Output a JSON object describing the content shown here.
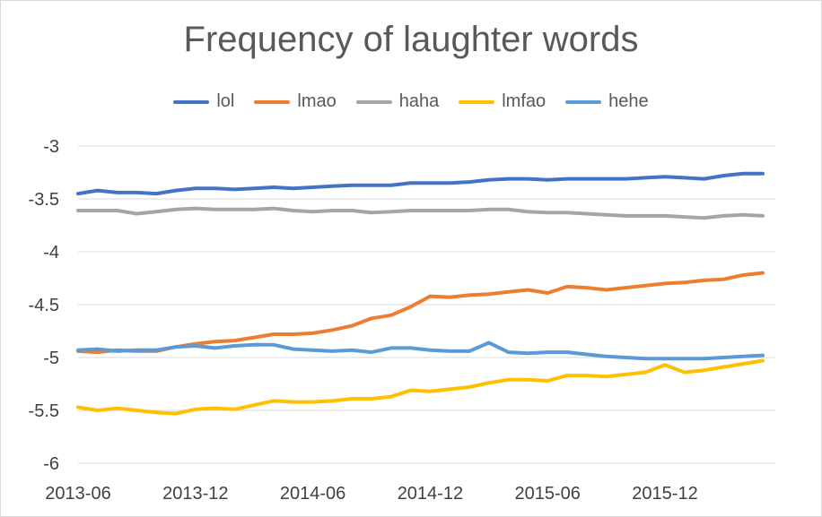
{
  "chart_data": {
    "type": "line",
    "title": "Frequency of laughter words",
    "xlabel": "",
    "ylabel": "",
    "ylim": [
      -6,
      -3
    ],
    "yticks": [
      -3,
      -3.5,
      -4,
      -4.5,
      -5,
      -5.5,
      -6
    ],
    "ytick_labels": [
      "-3",
      "-3.5",
      "-4",
      "-4.5",
      "-5",
      "-5.5",
      "-6"
    ],
    "x_labels": [
      "2013-06",
      "2013-12",
      "2014-06",
      "2014-12",
      "2015-06",
      "2015-12"
    ],
    "x_label_positions": [
      0,
      6,
      12,
      18,
      24,
      30
    ],
    "grid": true,
    "legend_position": "top",
    "series": [
      {
        "name": "lol",
        "color": "#4472C4",
        "values": [
          -3.45,
          -3.42,
          -3.44,
          -3.44,
          -3.45,
          -3.42,
          -3.4,
          -3.4,
          -3.41,
          -3.4,
          -3.39,
          -3.4,
          -3.39,
          -3.38,
          -3.37,
          -3.37,
          -3.37,
          -3.35,
          -3.35,
          -3.35,
          -3.34,
          -3.32,
          -3.31,
          -3.31,
          -3.32,
          -3.31,
          -3.31,
          -3.31,
          -3.31,
          -3.3,
          -3.29,
          -3.3,
          -3.31,
          -3.28,
          -3.26,
          -3.26
        ]
      },
      {
        "name": "lmao",
        "color": "#ED7D31",
        "values": [
          -4.94,
          -4.95,
          -4.93,
          -4.94,
          -4.94,
          -4.9,
          -4.87,
          -4.85,
          -4.84,
          -4.81,
          -4.78,
          -4.78,
          -4.77,
          -4.74,
          -4.7,
          -4.63,
          -4.6,
          -4.52,
          -4.42,
          -4.43,
          -4.41,
          -4.4,
          -4.38,
          -4.36,
          -4.39,
          -4.33,
          -4.34,
          -4.36,
          -4.34,
          -4.32,
          -4.3,
          -4.29,
          -4.27,
          -4.26,
          -4.22,
          -4.2
        ]
      },
      {
        "name": "haha",
        "color": "#A5A5A5",
        "values": [
          -3.61,
          -3.61,
          -3.61,
          -3.64,
          -3.62,
          -3.6,
          -3.59,
          -3.6,
          -3.6,
          -3.6,
          -3.59,
          -3.61,
          -3.62,
          -3.61,
          -3.61,
          -3.63,
          -3.62,
          -3.61,
          -3.61,
          -3.61,
          -3.61,
          -3.6,
          -3.6,
          -3.62,
          -3.63,
          -3.63,
          -3.64,
          -3.65,
          -3.66,
          -3.66,
          -3.66,
          -3.67,
          -3.68,
          -3.66,
          -3.65,
          -3.66
        ]
      },
      {
        "name": "lmfao",
        "color": "#FFC000",
        "values": [
          -5.47,
          -5.5,
          -5.48,
          -5.5,
          -5.52,
          -5.53,
          -5.49,
          -5.48,
          -5.49,
          -5.45,
          -5.41,
          -5.42,
          -5.42,
          -5.41,
          -5.39,
          -5.39,
          -5.37,
          -5.31,
          -5.32,
          -5.3,
          -5.28,
          -5.24,
          -5.21,
          -5.21,
          -5.22,
          -5.17,
          -5.17,
          -5.18,
          -5.16,
          -5.14,
          -5.07,
          -5.14,
          -5.12,
          -5.09,
          -5.06,
          -5.03
        ]
      },
      {
        "name": "hehe",
        "color": "#5B9BD5",
        "values": [
          -4.93,
          -4.92,
          -4.94,
          -4.93,
          -4.93,
          -4.9,
          -4.89,
          -4.91,
          -4.89,
          -4.88,
          -4.88,
          -4.92,
          -4.93,
          -4.94,
          -4.93,
          -4.95,
          -4.91,
          -4.91,
          -4.93,
          -4.94,
          -4.94,
          -4.86,
          -4.95,
          -4.96,
          -4.95,
          -4.95,
          -4.97,
          -4.99,
          -5.0,
          -5.01,
          -5.01,
          -5.01,
          -5.01,
          -5.0,
          -4.99,
          -4.98
        ]
      }
    ]
  }
}
